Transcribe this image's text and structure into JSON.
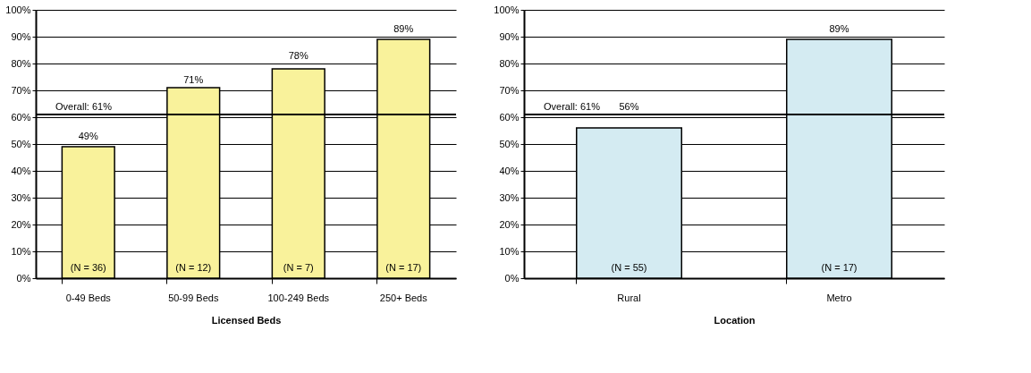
{
  "chart_data": [
    {
      "type": "bar",
      "xlabel": "Licensed Beds",
      "categories": [
        "0-49 Beds",
        "50-99 Beds",
        "100-249 Beds",
        "250+ Beds"
      ],
      "values": [
        49,
        71,
        78,
        89
      ],
      "color": "#f9f29b",
      "value_labels": [
        "49%",
        "71%",
        "78%",
        "89%"
      ],
      "ylim": [
        0,
        100
      ],
      "yticks": [
        {
          "value": 0,
          "label": "0%"
        },
        {
          "value": 10,
          "label": "10%"
        },
        {
          "value": 20,
          "label": "20%"
        },
        {
          "value": 30,
          "label": "30%"
        },
        {
          "value": 40,
          "label": "40%"
        },
        {
          "value": 50,
          "label": "50%"
        },
        {
          "value": 60,
          "label": "60%"
        },
        {
          "value": 70,
          "label": "70%"
        },
        {
          "value": 80,
          "label": "80%"
        },
        {
          "value": 90,
          "label": "90%"
        },
        {
          "value": 100,
          "label": "100%"
        }
      ],
      "grid": "y",
      "ref_lines": [
        {
          "axis": "y",
          "value": 61,
          "label": "Overall: 61%",
          "color": "#000000"
        }
      ],
      "annotations": [
        "(N = 36)",
        "(N = 12)",
        "(N = 7)",
        "(N = 17)"
      ]
    },
    {
      "type": "bar",
      "xlabel": "Location",
      "categories": [
        "Rural",
        "Metro"
      ],
      "values": [
        56,
        89
      ],
      "color": "#d4ebf2",
      "value_labels": [
        "56%",
        "89%"
      ],
      "ylim": [
        0,
        100
      ],
      "yticks": [
        {
          "value": 0,
          "label": "0%"
        },
        {
          "value": 10,
          "label": "10%"
        },
        {
          "value": 20,
          "label": "20%"
        },
        {
          "value": 30,
          "label": "30%"
        },
        {
          "value": 40,
          "label": "40%"
        },
        {
          "value": 50,
          "label": "50%"
        },
        {
          "value": 60,
          "label": "60%"
        },
        {
          "value": 70,
          "label": "70%"
        },
        {
          "value": 80,
          "label": "80%"
        },
        {
          "value": 90,
          "label": "90%"
        },
        {
          "value": 100,
          "label": "100%"
        }
      ],
      "grid": "y",
      "ref_lines": [
        {
          "axis": "y",
          "value": 61,
          "label": "Overall: 61%",
          "color": "#000000"
        }
      ],
      "annotations": [
        "(N = 55)",
        "(N = 17)"
      ]
    }
  ]
}
